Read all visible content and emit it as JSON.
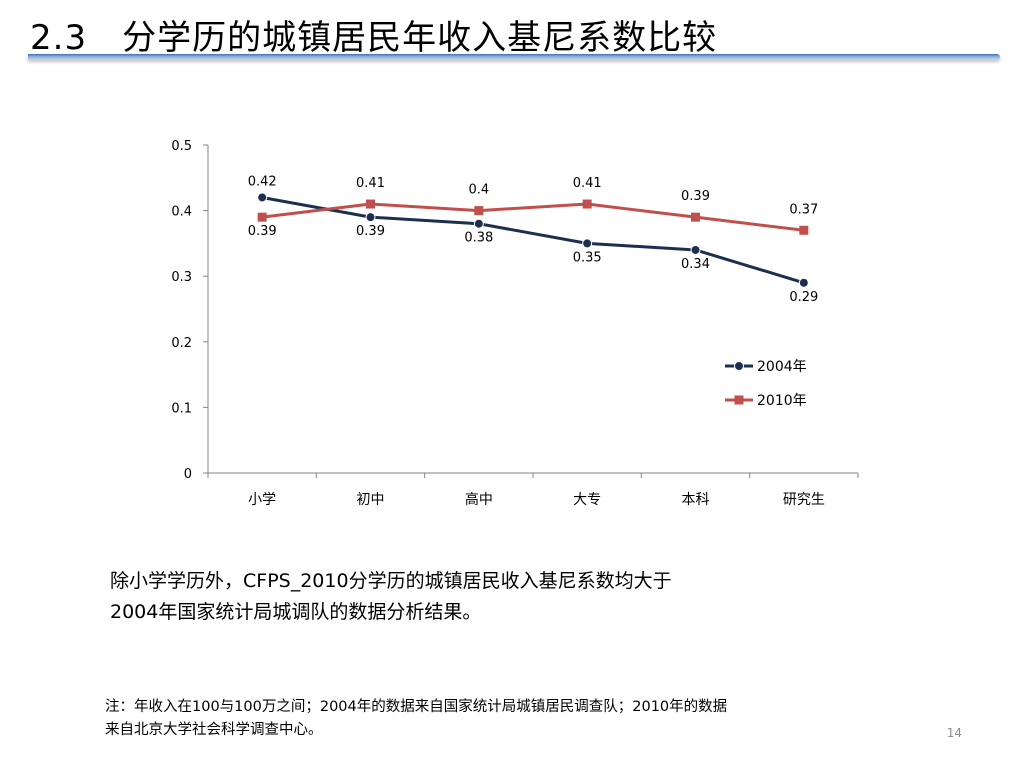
{
  "slide": {
    "title": "2.3　分学历的城镇居民年收入基尼系数比较",
    "summary_line1": "除小学学历外，CFPS_2010分学历的城镇居民收入基尼系数均大于",
    "summary_line2": "2004年国家统计局城调队的数据分析结果。",
    "note_line1": "注：年收入在100与100万之间；2004年的数据来自国家统计局城镇居民调查队；2010年的数据",
    "note_line2": "来自北京大学社会科学调查中心。",
    "page_number": "14"
  },
  "chart_data": {
    "type": "line",
    "title": "",
    "xlabel": "",
    "ylabel": "",
    "categories": [
      "小学",
      "初中",
      "高中",
      "大专",
      "本科",
      "研究生"
    ],
    "ylim": [
      0,
      0.5
    ],
    "yticks": [
      0,
      0.1,
      0.2,
      0.3,
      0.4,
      0.5
    ],
    "ytick_labels": [
      "0",
      "0.1",
      "0.2",
      "0.3",
      "0.4",
      "0.5"
    ],
    "grid": false,
    "legend_position": "right",
    "series": [
      {
        "name": "2004年",
        "values": [
          0.42,
          0.39,
          0.38,
          0.35,
          0.34,
          0.29
        ],
        "labels": [
          "0.42",
          "0.39",
          "0.38",
          "0.35",
          "0.34",
          "0.29"
        ],
        "color": "#1b2f4f",
        "marker": "circle"
      },
      {
        "name": "2010年",
        "values": [
          0.39,
          0.41,
          0.4,
          0.41,
          0.39,
          0.37
        ],
        "labels": [
          "0.39",
          "0.41",
          "0.4",
          "0.41",
          "0.39",
          "0.37"
        ],
        "color": "#c0504d",
        "marker": "square"
      }
    ]
  }
}
